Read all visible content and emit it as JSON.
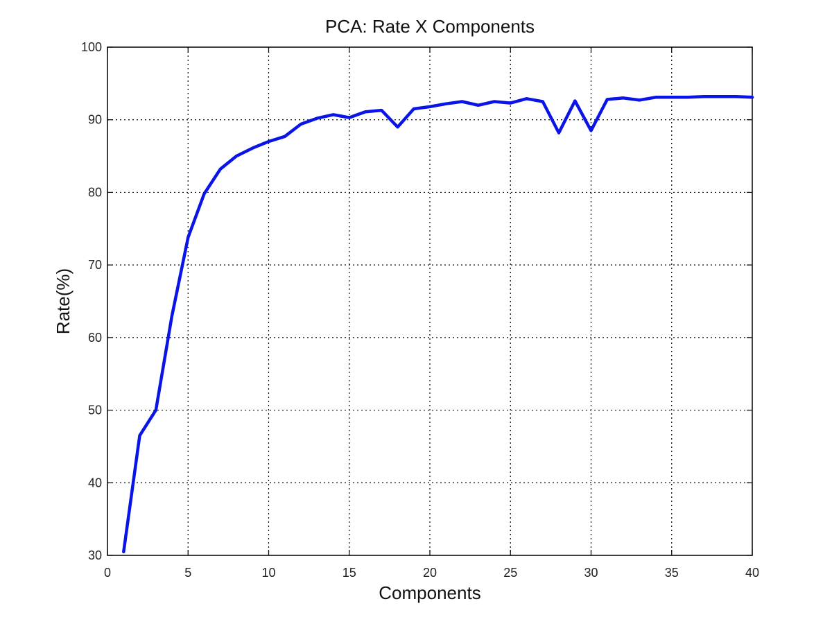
{
  "chart_data": {
    "type": "line",
    "title": "PCA: Rate X Components",
    "xlabel": "Components",
    "ylabel": "Rate(%)",
    "xlim": [
      0,
      40
    ],
    "ylim": [
      30,
      100
    ],
    "xticks": [
      0,
      5,
      10,
      15,
      20,
      25,
      30,
      35,
      40
    ],
    "yticks": [
      30,
      40,
      50,
      60,
      70,
      80,
      90,
      100
    ],
    "grid": true,
    "legend": "none",
    "series": [
      {
        "color": "#0a14e6",
        "x": [
          1,
          2,
          3,
          4,
          5,
          6,
          7,
          8,
          9,
          10,
          11,
          12,
          13,
          14,
          15,
          16,
          17,
          18,
          19,
          20,
          21,
          22,
          23,
          24,
          25,
          26,
          27,
          28,
          29,
          30,
          31,
          32,
          33,
          34,
          35,
          36,
          37,
          38,
          39,
          40
        ],
        "y": [
          30.5,
          46.5,
          50.0,
          63.0,
          73.8,
          79.8,
          83.2,
          85.0,
          86.1,
          87.0,
          87.7,
          89.4,
          90.2,
          90.7,
          90.3,
          91.1,
          91.3,
          89.0,
          91.5,
          91.8,
          92.2,
          92.5,
          92.0,
          92.5,
          92.3,
          92.9,
          92.5,
          88.2,
          92.6,
          88.5,
          92.8,
          93.0,
          92.7,
          93.1,
          93.1,
          93.1,
          93.2,
          93.2,
          93.2,
          93.1
        ]
      }
    ]
  }
}
